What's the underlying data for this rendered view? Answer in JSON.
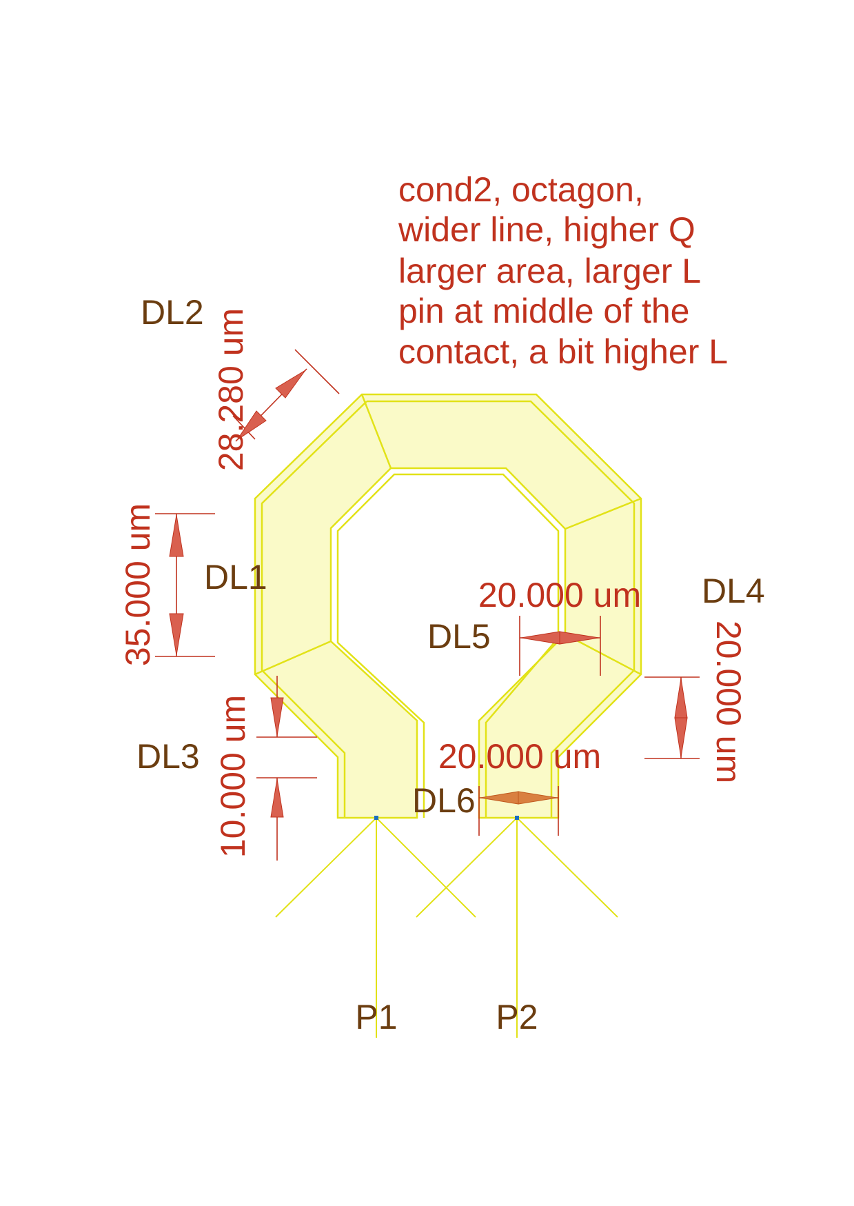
{
  "notes": [
    "cond2, octagon,",
    "wider line, higher Q",
    "larger area, larger L",
    "pin at middle of the",
    "contact, a bit higher L"
  ],
  "labels": {
    "dl1": "DL1",
    "dl2": "DL2",
    "dl3": "DL3",
    "dl4": "DL4",
    "dl5": "DL5",
    "dl6": "DL6",
    "p1": "P1",
    "p2": "P2"
  },
  "dimensions": {
    "dl1": "35.000 um",
    "dl2": "28.280 um",
    "dl3": "10.000 um",
    "dl4": "20.000 um",
    "dl5": "20.000 um",
    "dl6": "20.000 um"
  },
  "colors": {
    "conductor_fill": "#fafac8",
    "conductor_edge": "#e2e218",
    "dimension_text": "#c0321e",
    "label_text": "#6b3d10"
  }
}
